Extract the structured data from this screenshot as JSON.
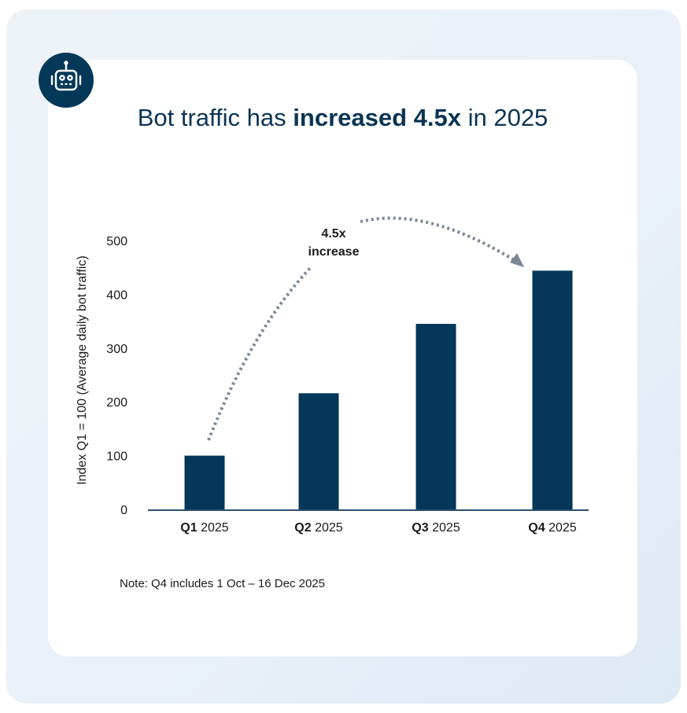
{
  "title": {
    "prefix": "Bot traffic has ",
    "bold": "increased 4.5x",
    "suffix": " in 2025"
  },
  "icon": "robot-icon",
  "colors": {
    "bar": "#04375a",
    "arrow": "#7a8694",
    "title": "#0b3453"
  },
  "note": "Note: Q4 includes 1 Oct – 16 Dec 2025",
  "chart_data": {
    "type": "bar",
    "categories": [
      {
        "bold": "Q1",
        "rest": " 2025"
      },
      {
        "bold": "Q2",
        "rest": " 2025"
      },
      {
        "bold": "Q3",
        "rest": " 2025"
      },
      {
        "bold": "Q4",
        "rest": " 2025"
      }
    ],
    "values": [
      100,
      216,
      345,
      444
    ],
    "ylabel": "Index Q1 = 100 (Average daily bot traffic)",
    "ylim": [
      0,
      500
    ],
    "yticks": [
      0,
      100,
      200,
      300,
      400,
      500
    ],
    "grid": false,
    "annotation": {
      "line1": "4.5x",
      "line2": "increase",
      "from": "Q1 2025",
      "to": "Q4 2025"
    }
  }
}
